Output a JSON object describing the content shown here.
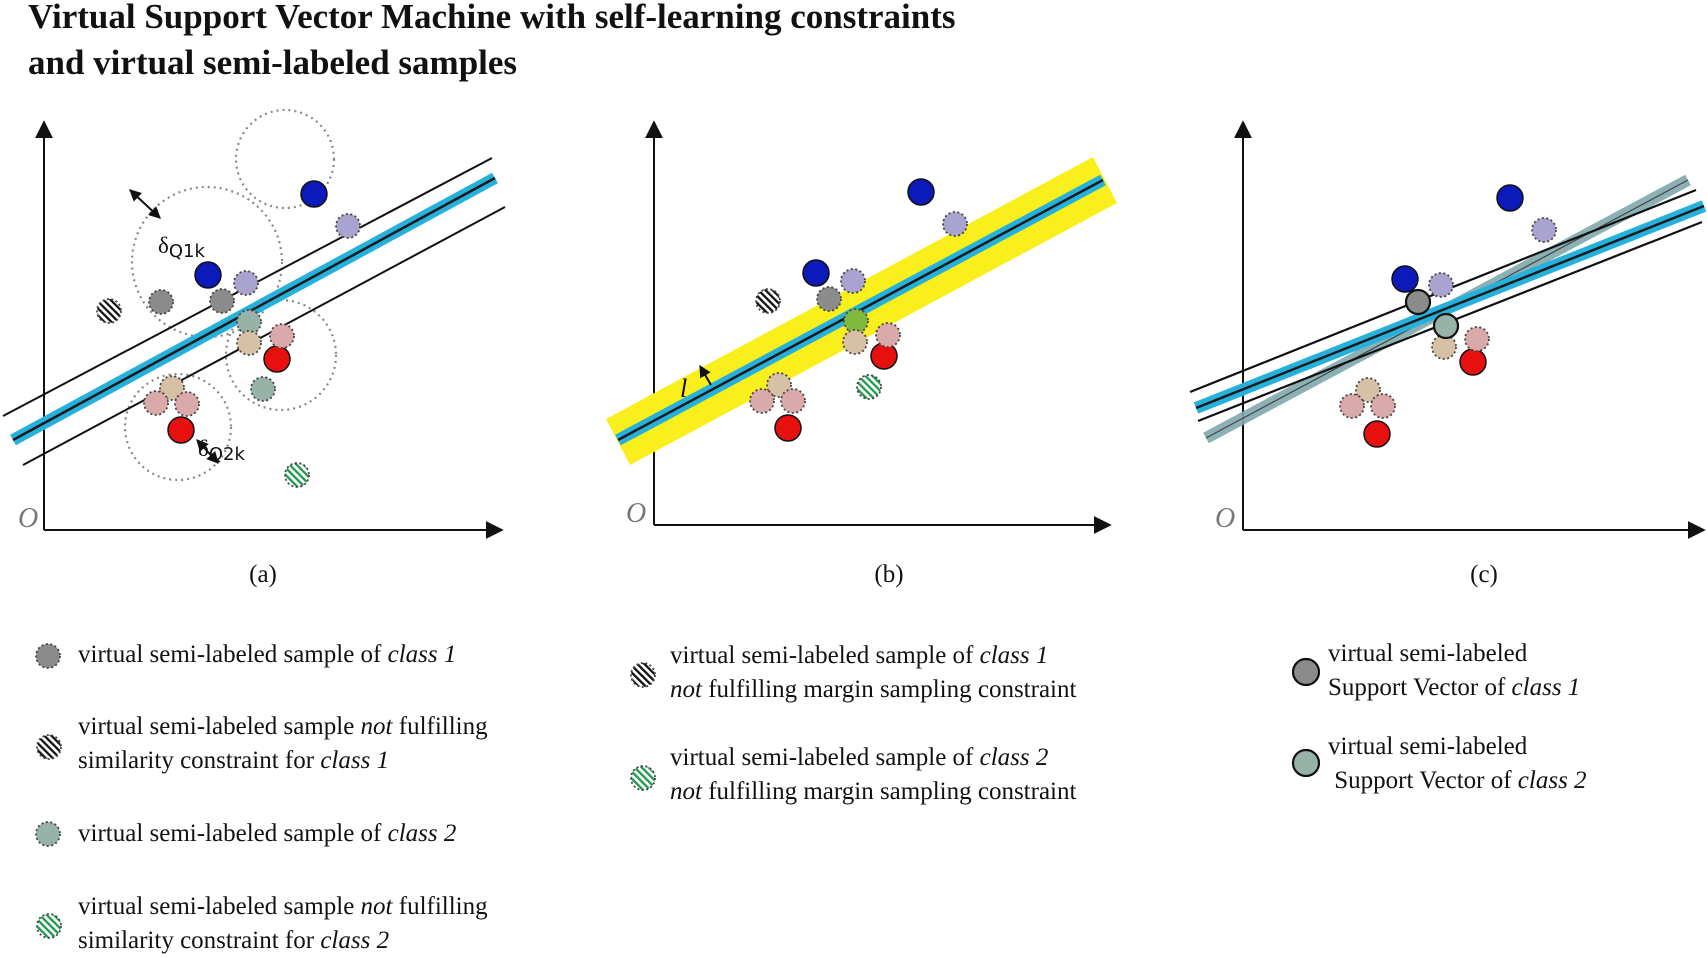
{
  "title": {
    "line1": "Virtual Support Vector Machine with self-learning constraints",
    "line2": "and virtual semi-labeled samples"
  },
  "panels": {
    "a": {
      "caption": "(a)",
      "origin_label": "O",
      "delta_q1k": "δ",
      "delta_q1k_sub": "Q1k",
      "delta_q2k": "δ",
      "delta_q2k_sub": "Q2k"
    },
    "b": {
      "caption": "(b)",
      "origin_label": "O",
      "margin_label": "l"
    },
    "c": {
      "caption": "(c)",
      "origin_label": "O"
    }
  },
  "legend": {
    "vs_class1": {
      "a": "virtual semi-labeled sample of ",
      "b": "class 1"
    },
    "vs_not_sim_class1": {
      "l1a": "virtual semi-labeled sample ",
      "l1b": "not",
      "l1c": " fulfilling",
      "l2a": "similarity constraint for ",
      "l2b": "class 1"
    },
    "vs_class2": {
      "a": "virtual semi-labeled sample of ",
      "b": "class 2"
    },
    "vs_not_sim_class2": {
      "l1a": "virtual semi-labeled sample ",
      "l1b": "not",
      "l1c": " fulfilling",
      "l2a": "similarity constraint for ",
      "l2b": "class 2"
    },
    "vs_not_margin_class1": {
      "l1a": "virtual semi-labeled sample of ",
      "l1b": "class 1",
      "l2a": "not",
      "l2b": " fulfilling margin sampling constraint"
    },
    "vs_not_margin_class2": {
      "l1a": "virtual semi-labeled sample of ",
      "l1b": "class 2",
      "l2a": "not",
      "l2b": " fulfilling margin sampling constraint"
    },
    "sv_class1": {
      "l1": "virtual semi-labeled",
      "l2a": "Support Vector of ",
      "l2b": "class 1"
    },
    "sv_class2": {
      "l1": "virtual semi-labeled",
      "l2a": " Support Vector of ",
      "l2b": "class 2"
    }
  },
  "colors": {
    "class1": "#0b1ab8",
    "class2": "#e80f0f",
    "hyperplane_band": "#25b1dc",
    "margin_fill": "#f8ef1d",
    "old_hyperplane": "#7fa9ad",
    "vs_class1": "#8b8b8b",
    "vs_class2": "#97b3a8",
    "vs_light_blue": "#a9a3cf",
    "vs_light_red": "#d9aaa9",
    "vs_tan": "#d6c0a6",
    "hatch_green": "#1e9a4c"
  }
}
